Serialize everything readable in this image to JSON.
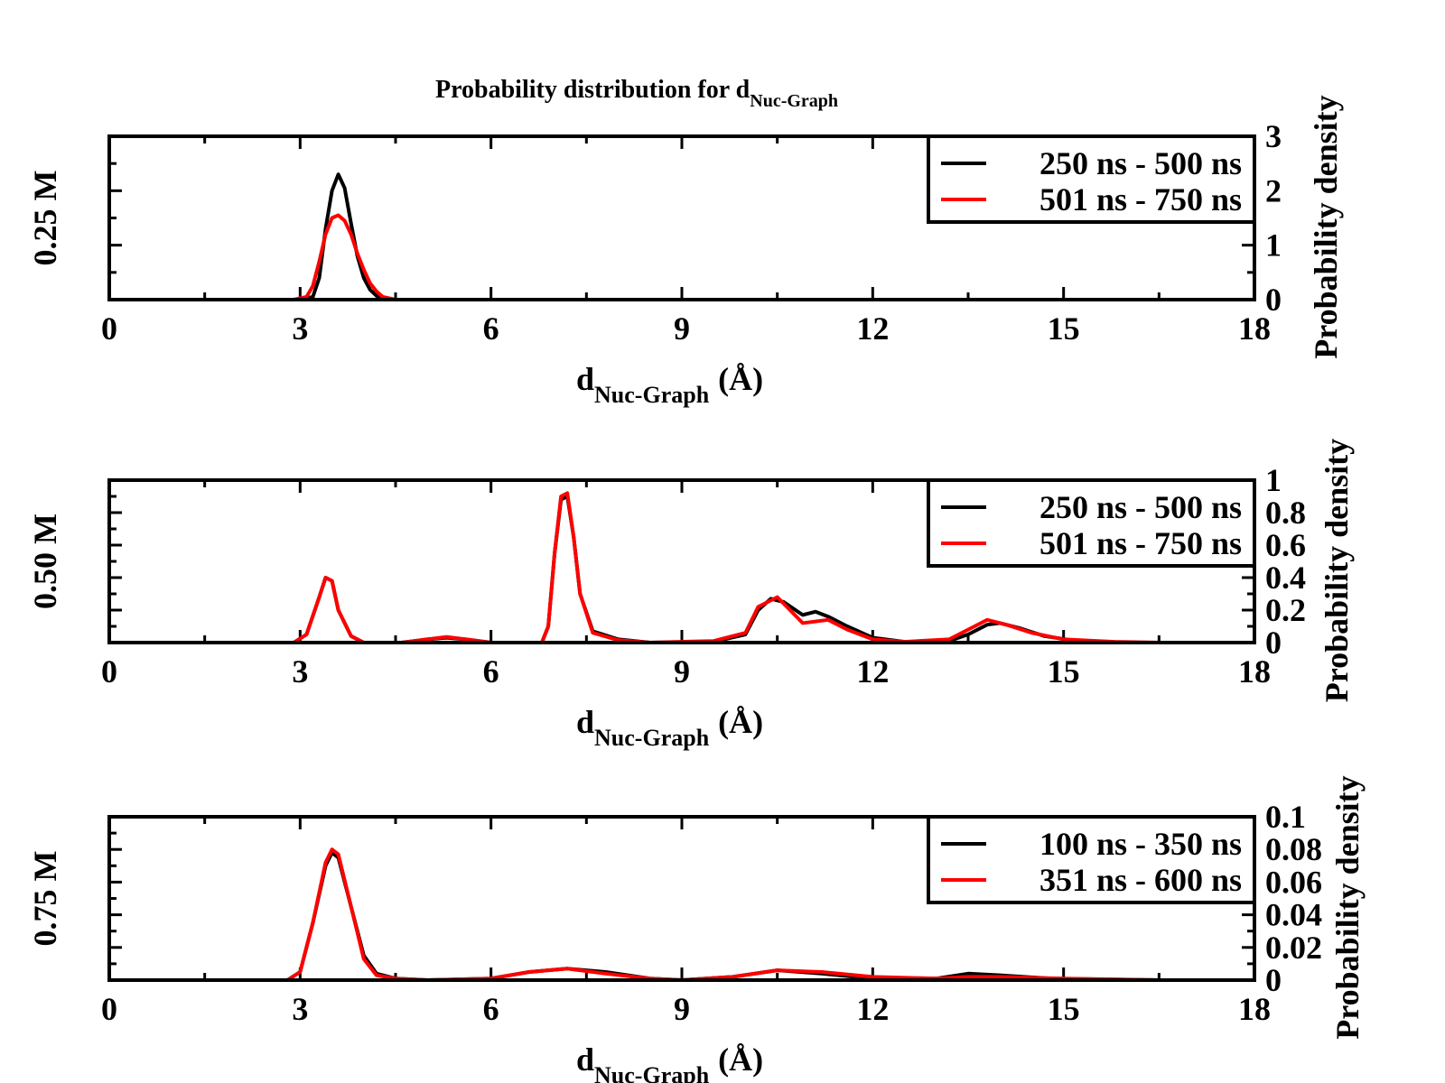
{
  "figure": {
    "title_main": "Probability distribution for d",
    "title_sub": "Nuc-Graph"
  },
  "colors": {
    "black_series": "#000000",
    "red_series": "#ff0000"
  },
  "chart_data": [
    {
      "type": "line",
      "panel_label": "0.25 M",
      "xlabel_main": "d",
      "xlabel_sub": "Nuc-Graph",
      "xlabel_unit": "(Å)",
      "ylabel_right": "Probability density",
      "xlim": [
        0,
        18
      ],
      "ylim": [
        0,
        3
      ],
      "x_ticks": [
        "0",
        "3",
        "6",
        "9",
        "12",
        "15",
        "18"
      ],
      "y_ticks_right": [
        "0",
        "1",
        "2",
        "3"
      ],
      "legend_position": "top-right",
      "series": [
        {
          "name": "250 ns - 500 ns",
          "color": "#000000",
          "points": [
            [
              3.0,
              0
            ],
            [
              3.2,
              0.05
            ],
            [
              3.3,
              0.4
            ],
            [
              3.4,
              1.3
            ],
            [
              3.5,
              2.0
            ],
            [
              3.6,
              2.3
            ],
            [
              3.7,
              2.05
            ],
            [
              3.8,
              1.4
            ],
            [
              3.9,
              0.8
            ],
            [
              4.0,
              0.4
            ],
            [
              4.1,
              0.18
            ],
            [
              4.2,
              0.07
            ],
            [
              4.4,
              0
            ]
          ]
        },
        {
          "name": "501 ns - 750 ns",
          "color": "#ff0000",
          "points": [
            [
              2.9,
              0
            ],
            [
              3.1,
              0.05
            ],
            [
              3.2,
              0.25
            ],
            [
              3.3,
              0.7
            ],
            [
              3.4,
              1.2
            ],
            [
              3.5,
              1.5
            ],
            [
              3.6,
              1.55
            ],
            [
              3.7,
              1.45
            ],
            [
              3.8,
              1.2
            ],
            [
              3.9,
              0.85
            ],
            [
              4.0,
              0.55
            ],
            [
              4.1,
              0.3
            ],
            [
              4.2,
              0.15
            ],
            [
              4.3,
              0.05
            ],
            [
              4.5,
              0
            ]
          ]
        }
      ]
    },
    {
      "type": "line",
      "panel_label": "0.50 M",
      "xlabel_main": "d",
      "xlabel_sub": "Nuc-Graph",
      "xlabel_unit": "(Å)",
      "ylabel_right": "Probability density",
      "xlim": [
        0,
        18
      ],
      "ylim": [
        0,
        1
      ],
      "x_ticks": [
        "0",
        "3",
        "6",
        "9",
        "12",
        "15",
        "18"
      ],
      "y_ticks_right": [
        "0",
        "0.2",
        "0.4",
        "0.6",
        "0.8",
        "1"
      ],
      "legend_position": "top-right",
      "series": [
        {
          "name": "250 ns - 500 ns",
          "color": "#000000",
          "points": [
            [
              2.9,
              0
            ],
            [
              3.1,
              0.05
            ],
            [
              3.3,
              0.28
            ],
            [
              3.4,
              0.4
            ],
            [
              3.5,
              0.38
            ],
            [
              3.6,
              0.2
            ],
            [
              3.8,
              0.04
            ],
            [
              4.0,
              0
            ],
            [
              4.6,
              0
            ],
            [
              5.0,
              0.02
            ],
            [
              5.3,
              0.03
            ],
            [
              5.6,
              0.02
            ],
            [
              6.0,
              0
            ],
            [
              6.8,
              0
            ],
            [
              6.9,
              0.1
            ],
            [
              7.0,
              0.55
            ],
            [
              7.1,
              0.88
            ],
            [
              7.2,
              0.9
            ],
            [
              7.3,
              0.65
            ],
            [
              7.4,
              0.3
            ],
            [
              7.6,
              0.07
            ],
            [
              8.0,
              0.02
            ],
            [
              8.5,
              0
            ],
            [
              9.5,
              0.005
            ],
            [
              10.0,
              0.05
            ],
            [
              10.2,
              0.2
            ],
            [
              10.4,
              0.27
            ],
            [
              10.6,
              0.25
            ],
            [
              10.9,
              0.17
            ],
            [
              11.1,
              0.19
            ],
            [
              11.3,
              0.16
            ],
            [
              11.6,
              0.1
            ],
            [
              12.0,
              0.03
            ],
            [
              12.5,
              0.005
            ],
            [
              13.2,
              0.01
            ],
            [
              13.5,
              0.05
            ],
            [
              13.8,
              0.11
            ],
            [
              14.0,
              0.12
            ],
            [
              14.3,
              0.09
            ],
            [
              14.7,
              0.04
            ],
            [
              15.2,
              0.01
            ],
            [
              16.0,
              0
            ]
          ]
        },
        {
          "name": "501 ns - 750 ns",
          "color": "#ff0000",
          "points": [
            [
              2.9,
              0
            ],
            [
              3.1,
              0.05
            ],
            [
              3.3,
              0.28
            ],
            [
              3.4,
              0.4
            ],
            [
              3.5,
              0.38
            ],
            [
              3.6,
              0.2
            ],
            [
              3.8,
              0.04
            ],
            [
              4.0,
              0
            ],
            [
              4.6,
              0
            ],
            [
              5.0,
              0.02
            ],
            [
              5.3,
              0.035
            ],
            [
              5.6,
              0.02
            ],
            [
              6.0,
              0
            ],
            [
              6.8,
              0
            ],
            [
              6.9,
              0.1
            ],
            [
              7.0,
              0.55
            ],
            [
              7.1,
              0.9
            ],
            [
              7.2,
              0.92
            ],
            [
              7.3,
              0.65
            ],
            [
              7.4,
              0.3
            ],
            [
              7.6,
              0.06
            ],
            [
              8.0,
              0.015
            ],
            [
              8.5,
              0
            ],
            [
              9.5,
              0.01
            ],
            [
              10.0,
              0.06
            ],
            [
              10.2,
              0.22
            ],
            [
              10.5,
              0.28
            ],
            [
              10.7,
              0.2
            ],
            [
              10.9,
              0.12
            ],
            [
              11.3,
              0.14
            ],
            [
              11.6,
              0.08
            ],
            [
              12.0,
              0.02
            ],
            [
              12.5,
              0.005
            ],
            [
              13.2,
              0.02
            ],
            [
              13.5,
              0.08
            ],
            [
              13.8,
              0.14
            ],
            [
              14.1,
              0.11
            ],
            [
              14.5,
              0.06
            ],
            [
              15.0,
              0.02
            ],
            [
              15.8,
              0.005
            ],
            [
              16.5,
              0
            ]
          ]
        }
      ]
    },
    {
      "type": "line",
      "panel_label": "0.75 M",
      "xlabel_main": "d",
      "xlabel_sub": "Nuc-Graph",
      "xlabel_unit": "(Å)",
      "ylabel_right": "Probability density",
      "xlim": [
        0,
        18
      ],
      "ylim": [
        0,
        0.1
      ],
      "x_ticks": [
        "0",
        "3",
        "6",
        "9",
        "12",
        "15",
        "18"
      ],
      "y_ticks_right": [
        "0",
        "0.02",
        "0.04",
        "0.06",
        "0.08",
        "0.1"
      ],
      "legend_position": "top-right",
      "series": [
        {
          "name": "100 ns - 350 ns",
          "color": "#000000",
          "points": [
            [
              2.8,
              0
            ],
            [
              3.0,
              0.005
            ],
            [
              3.2,
              0.035
            ],
            [
              3.4,
              0.07
            ],
            [
              3.5,
              0.078
            ],
            [
              3.6,
              0.075
            ],
            [
              3.8,
              0.045
            ],
            [
              4.0,
              0.015
            ],
            [
              4.2,
              0.004
            ],
            [
              4.5,
              0.001
            ],
            [
              5.0,
              0
            ],
            [
              6.0,
              0.001
            ],
            [
              6.6,
              0.005
            ],
            [
              7.2,
              0.007
            ],
            [
              7.8,
              0.005
            ],
            [
              8.5,
              0.001
            ],
            [
              9.0,
              0
            ],
            [
              9.8,
              0.002
            ],
            [
              10.5,
              0.006
            ],
            [
              11.2,
              0.004
            ],
            [
              12.0,
              0.001
            ],
            [
              13.0,
              0.001
            ],
            [
              13.5,
              0.004
            ],
            [
              14.0,
              0.003
            ],
            [
              14.8,
              0.001
            ],
            [
              16.5,
              0
            ]
          ]
        },
        {
          "name": "351 ns - 600 ns",
          "color": "#ff0000",
          "points": [
            [
              2.8,
              0
            ],
            [
              3.0,
              0.005
            ],
            [
              3.2,
              0.035
            ],
            [
              3.4,
              0.072
            ],
            [
              3.5,
              0.08
            ],
            [
              3.6,
              0.077
            ],
            [
              3.8,
              0.045
            ],
            [
              4.0,
              0.013
            ],
            [
              4.2,
              0.003
            ],
            [
              4.5,
              0.001
            ],
            [
              5.0,
              0
            ],
            [
              6.0,
              0.001
            ],
            [
              6.6,
              0.005
            ],
            [
              7.2,
              0.007
            ],
            [
              7.8,
              0.004
            ],
            [
              8.5,
              0.001
            ],
            [
              9.0,
              0
            ],
            [
              9.8,
              0.002
            ],
            [
              10.5,
              0.006
            ],
            [
              11.2,
              0.005
            ],
            [
              12.0,
              0.002
            ],
            [
              13.0,
              0.001
            ],
            [
              13.5,
              0.002
            ],
            [
              14.0,
              0.002
            ],
            [
              15.0,
              0.001
            ],
            [
              16.5,
              0
            ]
          ]
        }
      ]
    }
  ]
}
